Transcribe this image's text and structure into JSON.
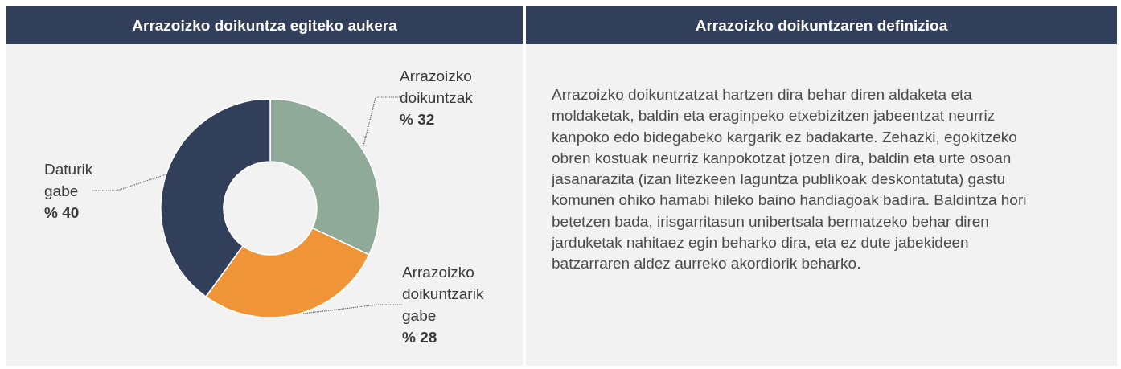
{
  "chart_data": [
    {
      "type": "donut",
      "title": "Arrazoizko doikuntza egiteko aukera",
      "categories": [
        "Arrazoizko doikuntzak",
        "Arrazoizko doikuntzarik gabe",
        "Daturik gabe"
      ],
      "values": [
        32,
        28,
        40
      ],
      "value_labels": [
        "% 32",
        "% 28",
        "% 40"
      ],
      "colors": [
        "#8faa98",
        "#f09537",
        "#323f5b"
      ],
      "legend": false
    },
    {
      "type": "other",
      "title": "Arrazoizko doikuntzaren definizioa",
      "annotations": [
        "Arrazoizko doikuntzatzat hartzen dira behar diren aldaketa eta moldaketak, baldin eta eraginpeko etxebizitzen jabeentzat neurriz kanpoko edo bidegabeko kargarik ez badakarte. Zehazki, egokitzeko obren kostuak neurriz kanpokotzat jotzen dira, baldin eta urte osoan jasanarazita (izan litezkeen laguntza publikoak deskontatuta) gastu komunen ohiko hamabi hileko baino handiagoak badira. Baldintza hori betetzen bada, irisgarritasun unibertsala bermatzeko behar diren jarduketak nahitaez egin beharko dira, eta ez dute jabekideen batzarraren aldez aurreko akordiorik beharko."
      ]
    }
  ]
}
